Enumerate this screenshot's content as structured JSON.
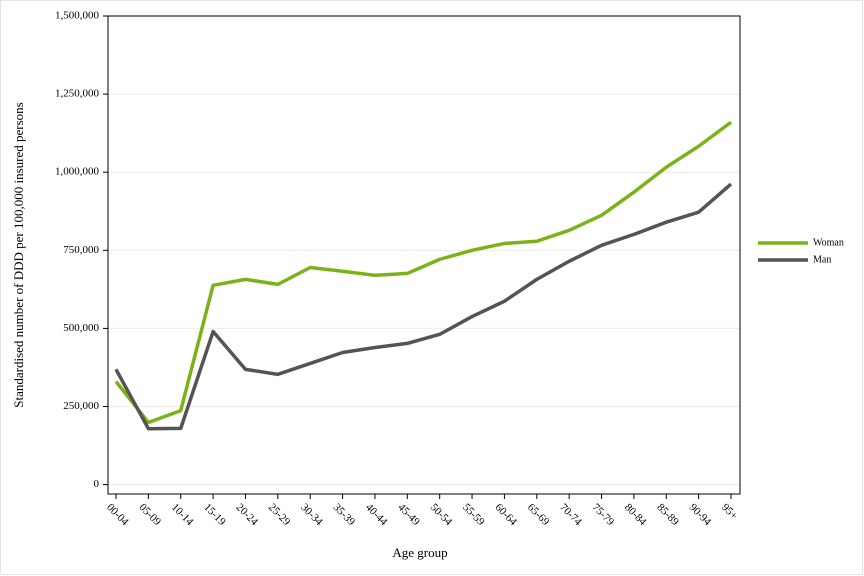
{
  "chart_data": {
    "type": "line",
    "xlabel": "Age group",
    "ylabel": "Standardised number of DDD per 100,000 insured persons",
    "categories": [
      "00-04",
      "05-09",
      "10-14",
      "15-19",
      "20-24",
      "25-29",
      "30-34",
      "35-39",
      "40-44",
      "45-49",
      "50-54",
      "55-59",
      "60-64",
      "65-69",
      "70-74",
      "75-79",
      "80-84",
      "85-89",
      "90-94",
      "95+"
    ],
    "series": [
      {
        "name": "Woman",
        "color": "#7ab317",
        "values": [
          330000,
          199000,
          237000,
          638000,
          657000,
          641000,
          695000,
          683000,
          670000,
          676000,
          721000,
          750000,
          772000,
          779000,
          814000,
          862000,
          936000,
          1016000,
          1083000,
          1160000
        ]
      },
      {
        "name": "Man",
        "color": "#545454",
        "values": [
          369000,
          179000,
          180000,
          490000,
          369000,
          353000,
          388000,
          423000,
          439000,
          452000,
          481000,
          538000,
          587000,
          657000,
          715000,
          766000,
          801000,
          840000,
          872000,
          962000
        ]
      }
    ],
    "ylim": [
      -30000,
      1500000
    ],
    "yticks": [
      0,
      {
        "value": 250000,
        "label": "250,000"
      },
      {
        "value": 500000,
        "label": "500,000"
      },
      {
        "value": 750000,
        "label": "750,000"
      },
      {
        "value": 1000000,
        "label": "1,000,000"
      },
      {
        "value": 1250000,
        "label": "1,250,000"
      },
      {
        "value": 1500000,
        "label": "1,500,000"
      }
    ],
    "grid": true,
    "legend": "right"
  }
}
